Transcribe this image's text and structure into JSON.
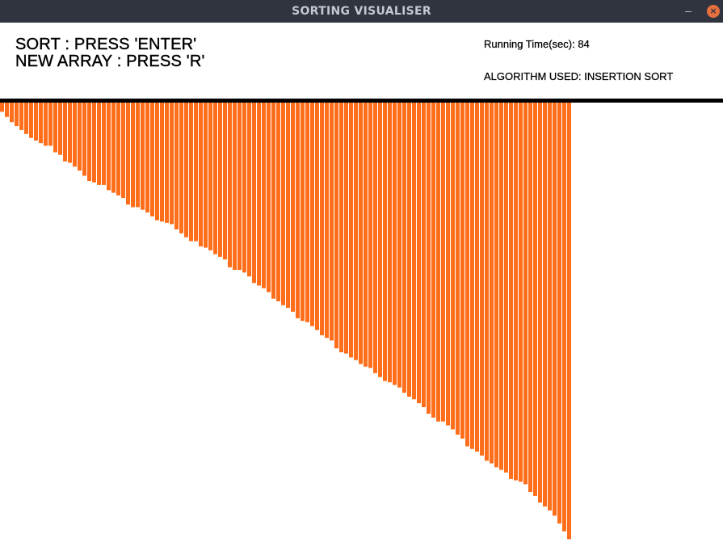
{
  "window": {
    "title": "SORTING VISUALISER",
    "minimize_label": "–",
    "close_label": "×"
  },
  "instructions": {
    "sort": "SORT : PRESS 'ENTER'",
    "new_array": "NEW ARRAY : PRESS 'R'"
  },
  "info": {
    "running_time": "Running Time(sec): 84",
    "algorithm": "ALGORITHM USED: INSERTION SORT"
  },
  "colors": {
    "bar": "#ff6e1a",
    "titlebar": "#2f343f",
    "divider": "#000000"
  },
  "chart_data": {
    "type": "bar",
    "values": [
      14,
      22,
      30,
      36,
      42,
      48,
      54,
      58,
      62,
      66,
      66,
      76,
      80,
      90,
      92,
      98,
      104,
      112,
      120,
      122,
      126,
      126,
      134,
      138,
      142,
      146,
      156,
      160,
      160,
      164,
      168,
      174,
      180,
      182,
      184,
      186,
      194,
      200,
      206,
      212,
      212,
      220,
      222,
      226,
      232,
      236,
      240,
      252,
      256,
      256,
      260,
      266,
      276,
      280,
      284,
      290,
      300,
      304,
      310,
      314,
      320,
      330,
      334,
      336,
      342,
      348,
      356,
      360,
      364,
      376,
      382,
      384,
      390,
      394,
      400,
      404,
      406,
      414,
      420,
      426,
      428,
      432,
      436,
      444,
      450,
      454,
      460,
      466,
      476,
      482,
      488,
      488,
      494,
      500,
      508,
      514,
      526,
      530,
      534,
      540,
      548,
      552,
      558,
      562,
      566,
      576,
      578,
      580,
      584,
      596,
      602,
      612,
      618,
      624,
      632,
      644,
      656,
      668
    ]
  }
}
